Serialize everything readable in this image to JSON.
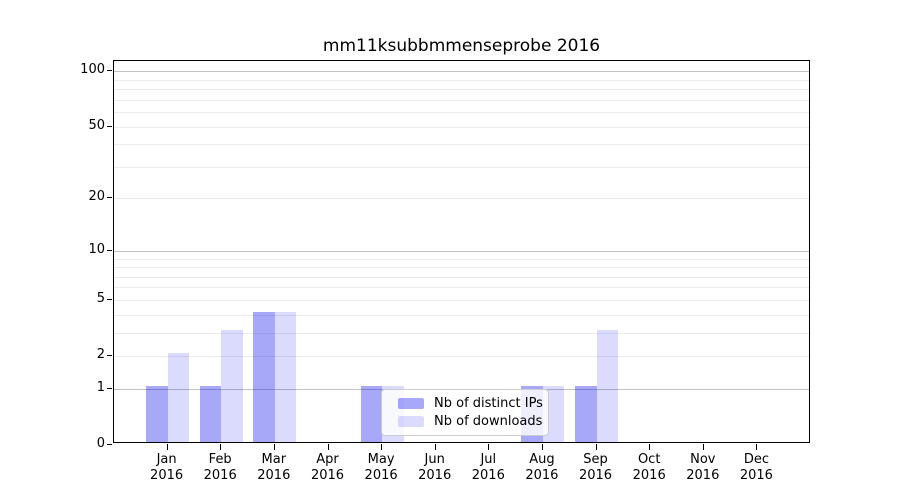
{
  "chart_data": {
    "type": "bar",
    "title": "mm11ksubbmmenseprobe 2016",
    "categories": [
      {
        "month": "Jan",
        "year": "2016"
      },
      {
        "month": "Feb",
        "year": "2016"
      },
      {
        "month": "Mar",
        "year": "2016"
      },
      {
        "month": "Apr",
        "year": "2016"
      },
      {
        "month": "May",
        "year": "2016"
      },
      {
        "month": "Jun",
        "year": "2016"
      },
      {
        "month": "Jul",
        "year": "2016"
      },
      {
        "month": "Aug",
        "year": "2016"
      },
      {
        "month": "Sep",
        "year": "2016"
      },
      {
        "month": "Oct",
        "year": "2016"
      },
      {
        "month": "Nov",
        "year": "2016"
      },
      {
        "month": "Dec",
        "year": "2016"
      }
    ],
    "series": [
      {
        "name": "Nb of distinct IPs",
        "color": "rgba(0,0,238,0.34)",
        "values": [
          1,
          1,
          4,
          0,
          1,
          0,
          0,
          1,
          1,
          0,
          0,
          0
        ]
      },
      {
        "name": "Nb of downloads",
        "color": "rgba(0,0,238,0.14)",
        "values": [
          2,
          3,
          4,
          0,
          1,
          0,
          0,
          1,
          3,
          0,
          0,
          0
        ]
      }
    ],
    "yscale": "log1p",
    "ylim": [
      0,
      113.3
    ],
    "yticks": [
      0,
      1,
      2,
      5,
      10,
      20,
      50,
      100
    ],
    "major_gridlines": [
      1,
      10,
      100
    ],
    "minor_gridlines": [
      2,
      3,
      4,
      5,
      6,
      7,
      8,
      9,
      20,
      30,
      40,
      50,
      60,
      70,
      80,
      90
    ],
    "grid": true,
    "legend_position": "lower-center-inside",
    "colors": {
      "grid_minor": "#ebebeb",
      "grid_major": "#c2c2c2",
      "spine": "#000000",
      "text": "#000000"
    }
  }
}
